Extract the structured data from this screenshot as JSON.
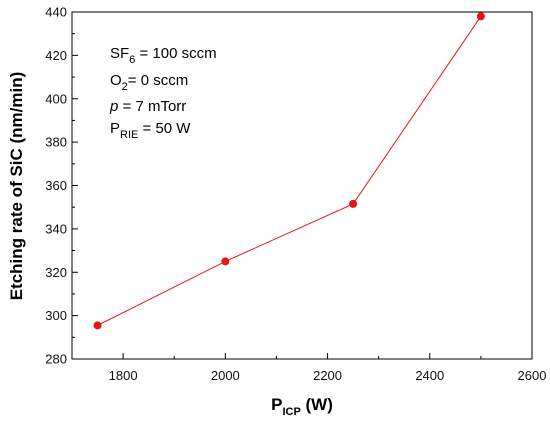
{
  "chart_data": {
    "type": "line",
    "x": [
      1750,
      2000,
      2250,
      2500
    ],
    "series": [
      {
        "values": [
          295.5,
          325,
          351.5,
          438
        ]
      }
    ],
    "xlim": [
      1700,
      2600
    ],
    "ylim": [
      280,
      440
    ],
    "xticks": [
      1800,
      2000,
      2200,
      2400,
      2600
    ],
    "yticks": [
      280,
      300,
      320,
      340,
      360,
      380,
      400,
      420,
      440
    ],
    "xlabel": {
      "main": "P",
      "sub": "ICP",
      "unit": " (W)"
    },
    "ylabel": "Etching rate of SiC (nm/min)",
    "grid": false,
    "color": "#e8141a",
    "annotations": {
      "sf6": {
        "main": "SF",
        "sub": "6",
        "rest": " = 100 sccm"
      },
      "o2": {
        "main": "O",
        "sub": "2",
        "rest": "= 0 sccm"
      },
      "pressure": {
        "main": "p",
        "rest": " = 7 mTorr"
      },
      "prie": {
        "main": "P",
        "sub": "RIE",
        "rest": " = 50 W"
      }
    }
  }
}
